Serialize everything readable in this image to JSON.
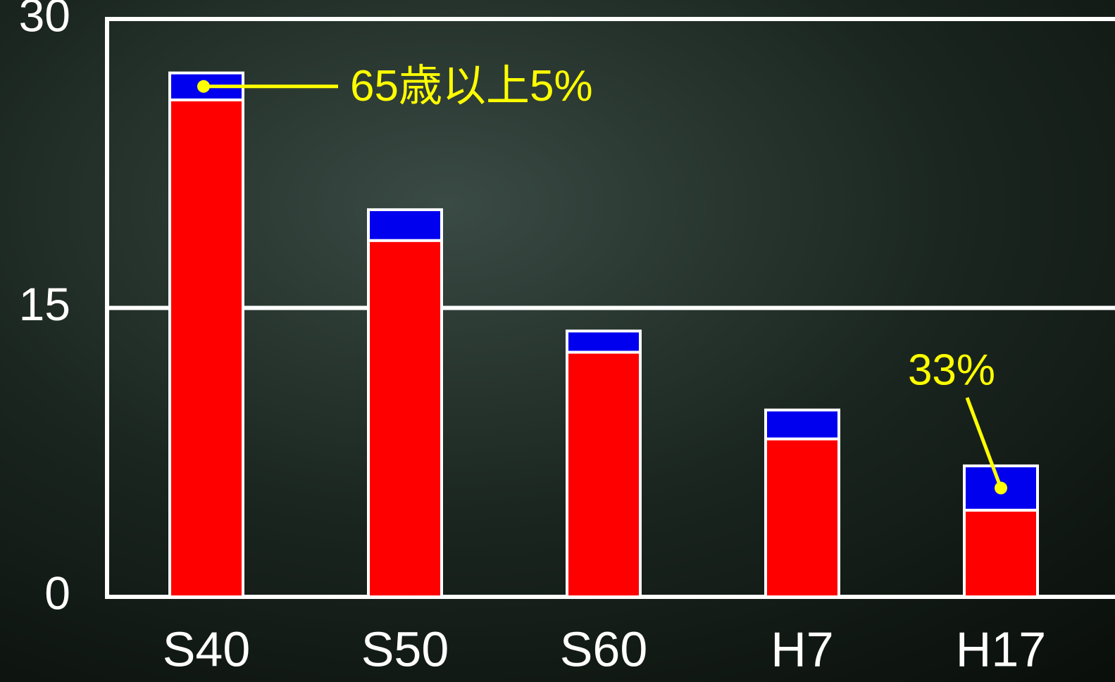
{
  "chart_data": {
    "type": "stacked_bar",
    "categories": [
      "S40",
      "S50",
      "S60",
      "H7",
      "H17"
    ],
    "series": [
      {
        "color": "#ff0000",
        "values": [
          25.8,
          18.5,
          12.7,
          8.2,
          4.5
        ]
      },
      {
        "color": "#0000ee",
        "values": [
          1.4,
          1.6,
          1.1,
          1.5,
          2.3
        ]
      }
    ],
    "ylim": [
      0,
      30
    ],
    "yticks": [
      0,
      15,
      30
    ],
    "grid": true,
    "annotations": [
      "65歳以上5%",
      "33%"
    ],
    "annotation_color": "#ffff00"
  }
}
